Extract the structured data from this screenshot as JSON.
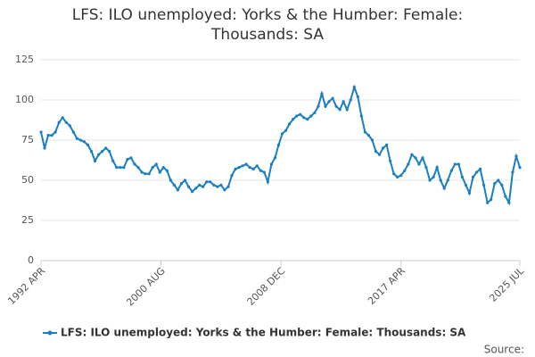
{
  "chart_data": {
    "type": "line",
    "title": "LFS: ILO unemployed: Yorks & the Humber: Female: Thousands: SA",
    "source_label": "Source:",
    "x": [
      "1992-04",
      "1992-07",
      "1992-10",
      "1993-01",
      "1993-04",
      "1993-07",
      "1993-10",
      "1994-01",
      "1994-04",
      "1994-07",
      "1994-10",
      "1995-01",
      "1995-04",
      "1995-07",
      "1995-10",
      "1996-01",
      "1996-04",
      "1996-07",
      "1996-10",
      "1997-01",
      "1997-04",
      "1997-07",
      "1997-10",
      "1998-01",
      "1998-04",
      "1998-07",
      "1998-10",
      "1999-01",
      "1999-04",
      "1999-07",
      "1999-10",
      "2000-01",
      "2000-04",
      "2000-07",
      "2000-10",
      "2001-01",
      "2001-04",
      "2001-07",
      "2001-10",
      "2002-01",
      "2002-04",
      "2002-07",
      "2002-10",
      "2003-01",
      "2003-04",
      "2003-07",
      "2003-10",
      "2004-01",
      "2004-04",
      "2004-07",
      "2004-10",
      "2005-01",
      "2005-04",
      "2005-07",
      "2005-10",
      "2006-01",
      "2006-04",
      "2006-07",
      "2006-10",
      "2007-01",
      "2007-04",
      "2007-07",
      "2007-10",
      "2008-01",
      "2008-04",
      "2008-07",
      "2008-10",
      "2009-01",
      "2009-04",
      "2009-07",
      "2009-10",
      "2010-01",
      "2010-04",
      "2010-07",
      "2010-10",
      "2011-01",
      "2011-04",
      "2011-07",
      "2011-10",
      "2012-01",
      "2012-04",
      "2012-07",
      "2012-10",
      "2013-01",
      "2013-04",
      "2013-07",
      "2013-10",
      "2014-01",
      "2014-04",
      "2014-07",
      "2014-10",
      "2015-01",
      "2015-04",
      "2015-07",
      "2015-10",
      "2016-01",
      "2016-04",
      "2016-07",
      "2016-10",
      "2017-01",
      "2017-04",
      "2017-07",
      "2017-10",
      "2018-01",
      "2018-04",
      "2018-07",
      "2018-10",
      "2019-01",
      "2019-04",
      "2019-07",
      "2019-10",
      "2020-01",
      "2020-04",
      "2020-07",
      "2020-10",
      "2021-01",
      "2021-04",
      "2021-07",
      "2021-10",
      "2022-01",
      "2022-04",
      "2022-07",
      "2022-10",
      "2023-01",
      "2023-04",
      "2023-07",
      "2023-10",
      "2024-01",
      "2024-04",
      "2024-07",
      "2024-10",
      "2025-01",
      "2025-04",
      "2025-07"
    ],
    "series": [
      {
        "name": "LFS: ILO unemployed: Yorks & the Humber: Female: Thousands: SA",
        "color": "#1a7fc1",
        "values": [
          80,
          70,
          78,
          78,
          80,
          86,
          89,
          86,
          84,
          80,
          76,
          75,
          74,
          72,
          68,
          62,
          66,
          68,
          70,
          68,
          62,
          58,
          58,
          58,
          63,
          64,
          60,
          58,
          55,
          54,
          54,
          58,
          60,
          55,
          58,
          56,
          50,
          47,
          44,
          48,
          50,
          46,
          43,
          45,
          47,
          46,
          49,
          49,
          47,
          46,
          47,
          44,
          46,
          53,
          57,
          58,
          59,
          60,
          58,
          57,
          59,
          56,
          55,
          49,
          60,
          64,
          72,
          79,
          81,
          85,
          88,
          90,
          91,
          89,
          88,
          90,
          92,
          96,
          104,
          96,
          99,
          101,
          96,
          94,
          99,
          94,
          100,
          108,
          102,
          90,
          80,
          78,
          75,
          68,
          66,
          70,
          72,
          62,
          54,
          52,
          53,
          56,
          60,
          66,
          64,
          60,
          64,
          58,
          50,
          52,
          58,
          50,
          45,
          50,
          56,
          60,
          60,
          52,
          47,
          42,
          52,
          55,
          57,
          47,
          36,
          38,
          48,
          50,
          47,
          40,
          36,
          55,
          65,
          58
        ]
      }
    ],
    "xlim": [
      "1992-04",
      "2025-07"
    ],
    "xticks": [
      {
        "value": "1992-04",
        "label": "1992 APR"
      },
      {
        "value": "2000-08",
        "label": "2000 AUG"
      },
      {
        "value": "2008-12",
        "label": "2008 DEC"
      },
      {
        "value": "2017-04",
        "label": "2017 APR"
      },
      {
        "value": "2025-07",
        "label": "2025 JUL"
      }
    ],
    "ylim": [
      0,
      125
    ],
    "yticks": [
      0,
      25,
      50,
      75,
      100,
      125
    ],
    "grid": true,
    "legend": "bottom"
  }
}
